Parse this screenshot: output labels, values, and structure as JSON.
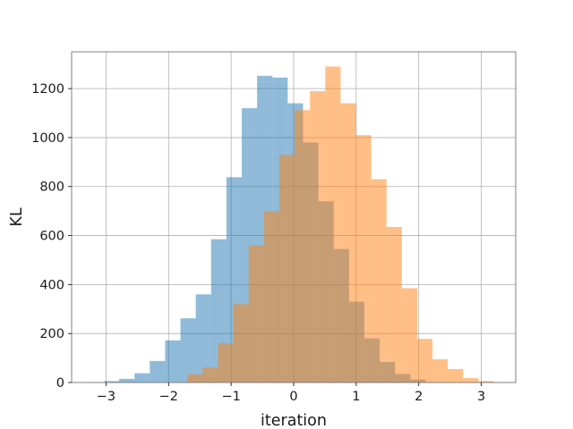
{
  "chart_data": {
    "type": "bar",
    "subtype": "overlapping-histogram",
    "title": "",
    "xlabel": "iteration",
    "ylabel": "KL",
    "xlim": [
      -3.55,
      3.55
    ],
    "ylim": [
      0,
      1350
    ],
    "xticks": [
      -3,
      -2,
      -1,
      0,
      1,
      2,
      3
    ],
    "xtick_labels": [
      "−3",
      "−2",
      "−1",
      "0",
      "1",
      "2",
      "3"
    ],
    "yticks": [
      0,
      200,
      400,
      600,
      800,
      1000,
      1200
    ],
    "ytick_labels": [
      "0",
      "200",
      "400",
      "600",
      "800",
      "1000",
      "1200"
    ],
    "grid": true,
    "legend": "none",
    "series": [
      {
        "color": "#1f77b4",
        "alpha": 0.5,
        "bin_width": 0.245,
        "bin_starts": [
          -3.28,
          -3.035,
          -2.79,
          -2.545,
          -2.3,
          -2.055,
          -1.81,
          -1.565,
          -1.32,
          -1.075,
          -0.83,
          -0.585,
          -0.34,
          -0.095,
          0.15,
          0.395,
          0.64,
          0.885,
          1.13,
          1.375,
          1.62,
          1.865
        ],
        "values": [
          2,
          6,
          15,
          38,
          88,
          172,
          262,
          360,
          585,
          838,
          1120,
          1252,
          1245,
          1140,
          980,
          740,
          545,
          330,
          180,
          84,
          35,
          12
        ]
      },
      {
        "color": "#ff7f0e",
        "alpha": 0.5,
        "bin_width": 0.245,
        "bin_starts": [
          -1.7,
          -1.455,
          -1.21,
          -0.965,
          -0.72,
          -0.475,
          -0.23,
          0.015,
          0.26,
          0.505,
          0.75,
          0.995,
          1.24,
          1.485,
          1.73,
          1.975,
          2.22,
          2.465,
          2.71,
          2.955,
          3.2
        ],
        "values": [
          34,
          62,
          160,
          320,
          560,
          700,
          930,
          1112,
          1190,
          1290,
          1140,
          1010,
          830,
          635,
          385,
          178,
          95,
          55,
          18,
          6,
          2
        ]
      }
    ]
  }
}
